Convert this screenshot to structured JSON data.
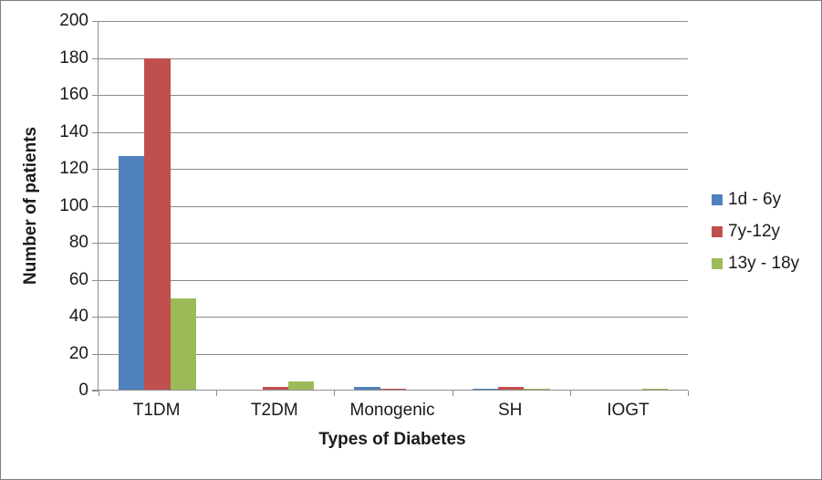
{
  "chart_data": {
    "type": "bar",
    "title": "",
    "xlabel": "Types of Diabetes",
    "ylabel": "Number of patients",
    "categories": [
      "T1DM",
      "T2DM",
      "Monogenic",
      "SH",
      "IOGT"
    ],
    "series": [
      {
        "name": "1d - 6y",
        "color": "#4F81BD",
        "values": [
          127,
          0,
          2,
          1,
          0
        ]
      },
      {
        "name": "7y-12y",
        "color": "#C0504D",
        "values": [
          180,
          2,
          1,
          2,
          0
        ]
      },
      {
        "name": "13y - 18y",
        "color": "#9BBB59",
        "values": [
          50,
          5,
          0,
          1,
          1
        ]
      }
    ],
    "ylim": [
      0,
      200
    ],
    "ytick_step": 20,
    "yticks": [
      0,
      20,
      40,
      60,
      80,
      100,
      120,
      140,
      160,
      180,
      200
    ],
    "grid": true,
    "legend_position": "right"
  },
  "colors": {
    "gridline": "#8C8C8C",
    "axis": "#8C8C8C",
    "frame_border": "#808080",
    "text": "#1A1A1A",
    "background": "#FFFFFF"
  }
}
